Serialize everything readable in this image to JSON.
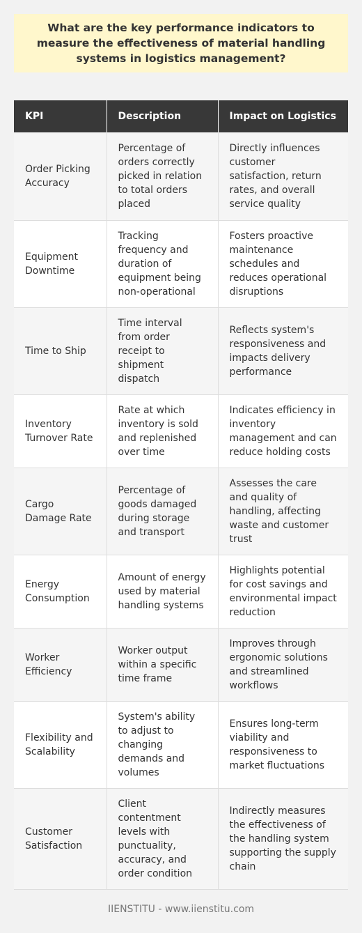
{
  "title": "What are the key performance indicators to measure the effectiveness of material handling systems in logistics management?",
  "table": {
    "headers": [
      "KPI",
      "Description",
      "Impact on Logistics"
    ],
    "rows": [
      {
        "kpi": "Order Picking Accuracy",
        "description": "Percentage of orders correctly picked in relation to total orders placed",
        "impact": "Directly influences customer satisfaction, return rates, and overall service quality"
      },
      {
        "kpi": "Equipment Downtime",
        "description": "Tracking frequency and duration of equipment being non-operational",
        "impact": "Fosters proactive maintenance schedules and reduces operational disruptions"
      },
      {
        "kpi": "Time to Ship",
        "description": "Time interval from order receipt to shipment dispatch",
        "impact": "Reflects system's responsiveness and impacts delivery performance"
      },
      {
        "kpi": "Inventory Turnover Rate",
        "description": "Rate at which inventory is sold and replenished over time",
        "impact": "Indicates efficiency in inventory management and can reduce holding costs"
      },
      {
        "kpi": "Cargo Damage Rate",
        "description": "Percentage of goods damaged during storage and transport",
        "impact": "Assesses the care and quality of handling, affecting waste and customer trust"
      },
      {
        "kpi": "Energy Consumption",
        "description": "Amount of energy used by material handling systems",
        "impact": "Highlights potential for cost savings and environmental impact reduction"
      },
      {
        "kpi": "Worker Efficiency",
        "description": "Worker output within a specific time frame",
        "impact": "Improves through ergonomic solutions and streamlined workflows"
      },
      {
        "kpi": "Flexibility and Scalability",
        "description": "System's ability to adjust to changing demands and volumes",
        "impact": "Ensures long-term viability and responsiveness to market fluctuations"
      },
      {
        "kpi": "Customer Satisfaction",
        "description": "Client contentment levels with punctuality, accuracy, and order condition",
        "impact": "Indirectly measures the effectiveness of the handling system supporting the supply chain"
      }
    ]
  },
  "footer": "IIENSTITU - www.iienstitu.com",
  "colors": {
    "title_background": "#fff7cc",
    "header_background": "#383838",
    "page_background": "#f2f2f2"
  }
}
